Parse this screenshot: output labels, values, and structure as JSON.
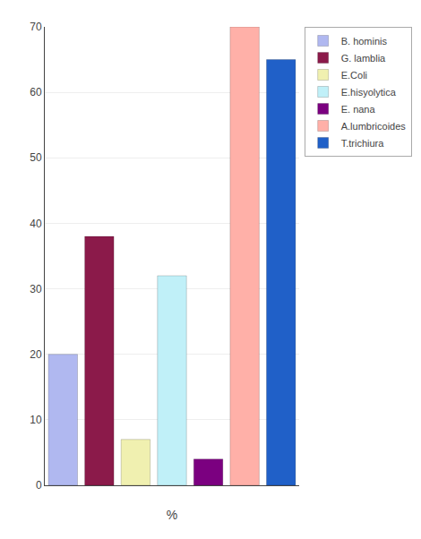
{
  "chart_data": {
    "type": "bar",
    "categories": [
      "B. hominis",
      "G. lamblia",
      "E.Coli",
      "E.hisyolytica",
      "E. nana",
      "A.lumbricoides",
      "T.trichiura"
    ],
    "values": [
      20,
      38,
      7,
      32,
      4,
      70,
      65
    ],
    "colors": [
      "#b0b8f0",
      "#8b1a4a",
      "#f0f0b0",
      "#c0f0f8",
      "#7b0080",
      "#ffb0a8",
      "#2060c8"
    ],
    "xlabel": "%",
    "ylim": [
      0,
      70
    ],
    "yticks": [
      0,
      10,
      20,
      30,
      40,
      50,
      60,
      70
    ],
    "grid": true,
    "legend": "upper right",
    "tick_labels": "y"
  }
}
